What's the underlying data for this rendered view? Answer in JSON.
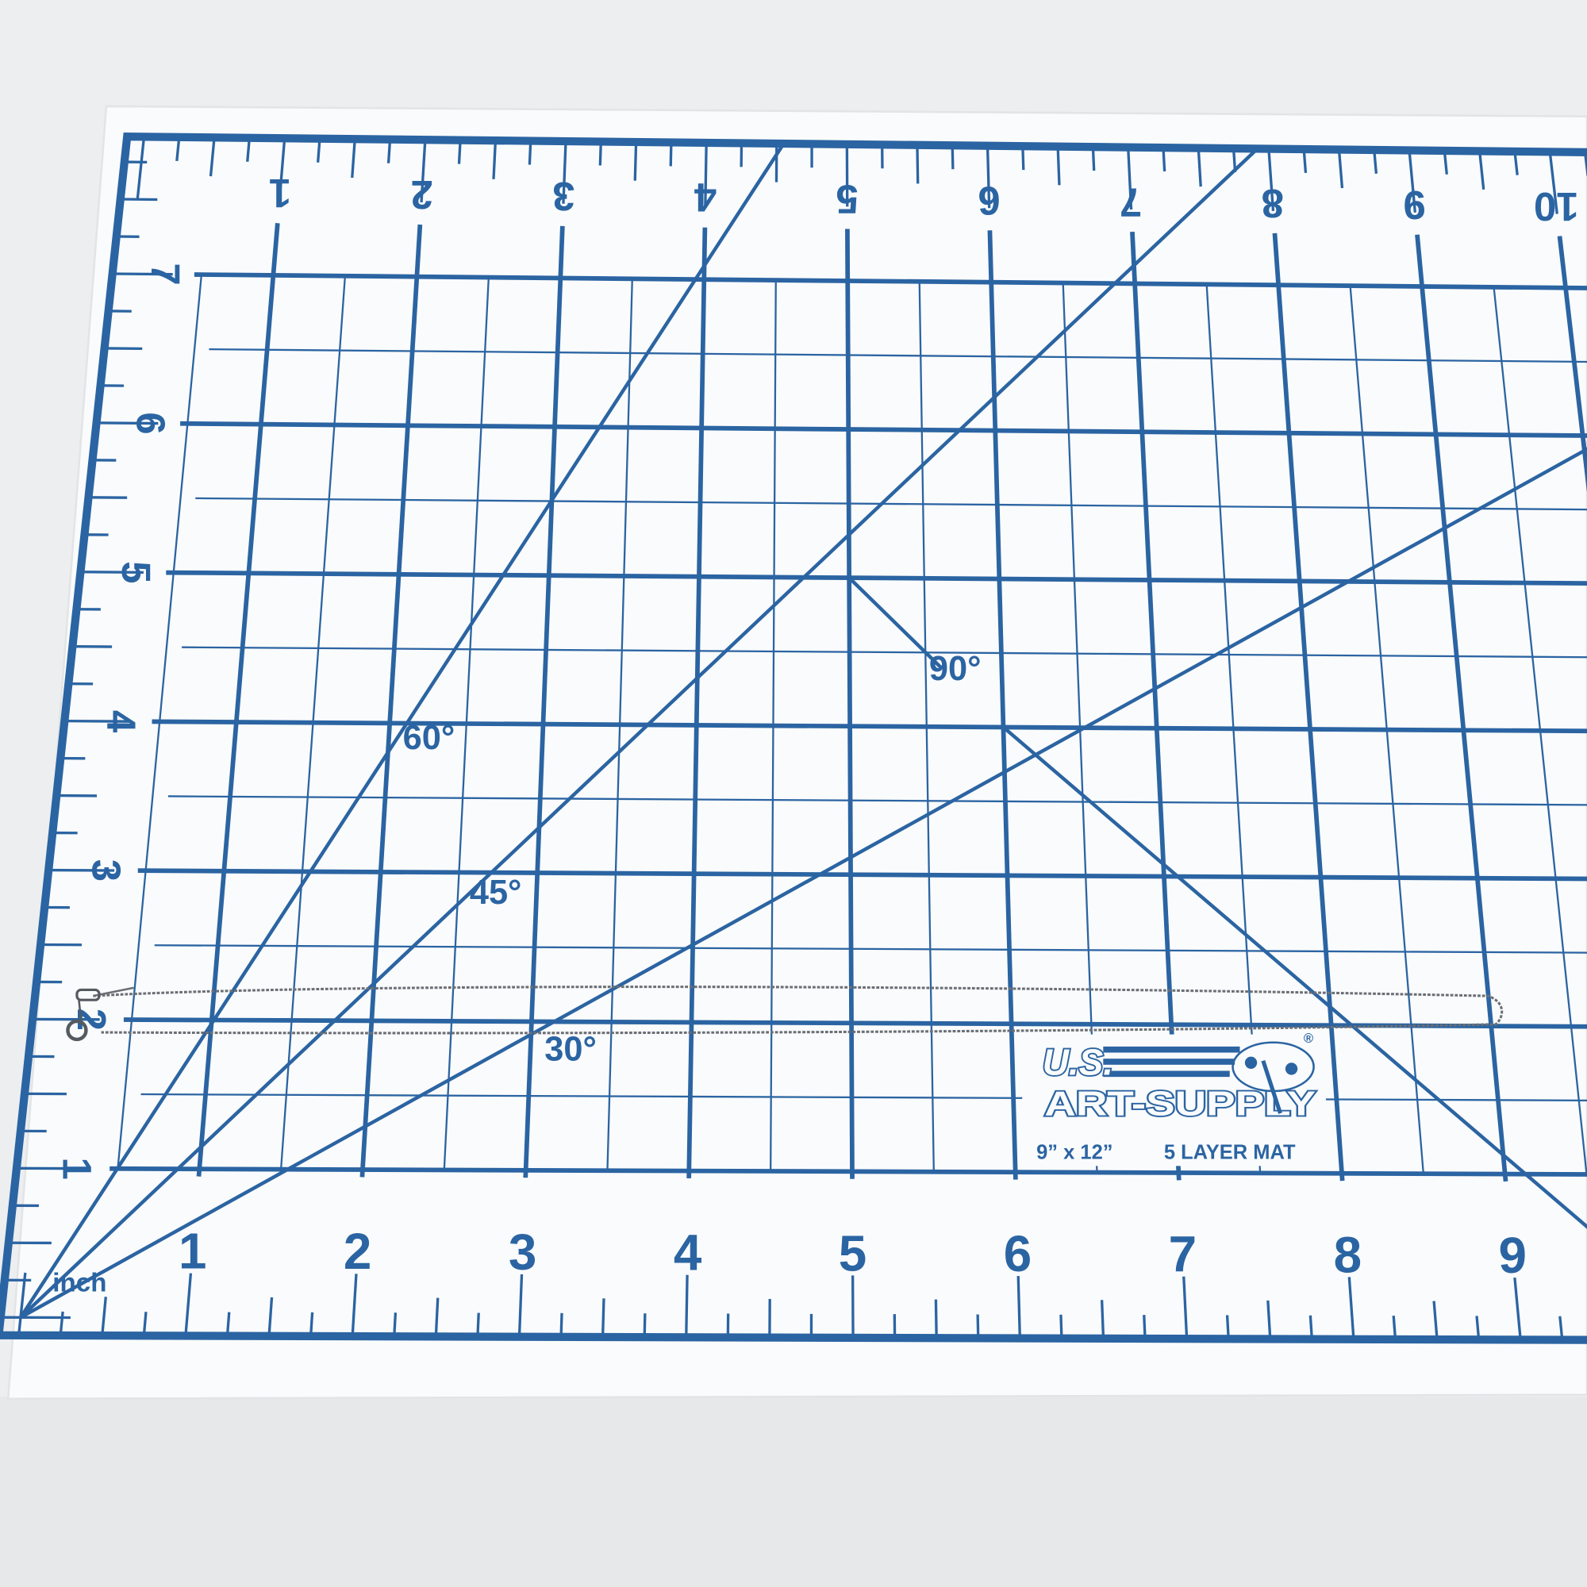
{
  "colors": {
    "mat_blue": "#2b64a2",
    "mat_white": "#fafbfc",
    "background": "#eceef0",
    "chain": "#6b6f74"
  },
  "mat": {
    "unit_label": "inch",
    "bottom_labels": [
      "1",
      "2",
      "3",
      "4",
      "5",
      "6",
      "7",
      "8",
      "9"
    ],
    "top_labels": [
      "1",
      "2",
      "3",
      "4",
      "5",
      "6",
      "7",
      "8",
      "9",
      "10"
    ],
    "left_labels": [
      "1",
      "2",
      "3",
      "4",
      "5",
      "6",
      "7"
    ],
    "angle_labels": {
      "a60": "60°",
      "a45": "45°",
      "a30": "30°",
      "a90": "90°"
    }
  },
  "logo": {
    "line1": "U.S.",
    "line2": "ART-SUPPLY",
    "registered": "®",
    "size": "9” x 12”",
    "type": "5 LAYER MAT"
  },
  "object": {
    "icon": "chain-icon"
  }
}
